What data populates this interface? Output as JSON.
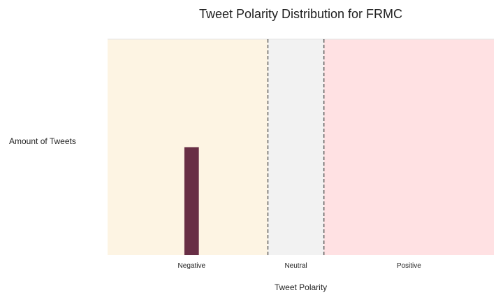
{
  "chart_data": {
    "type": "bar",
    "title": "Tweet Polarity Distribution for FRMC",
    "xlabel": "Tweet Polarity",
    "ylabel": "Amount of Tweets",
    "xlim": [
      -1.0,
      1.0
    ],
    "ylim": [
      0,
      2
    ],
    "grid": false,
    "regions": [
      {
        "label": "Negative",
        "from": -1.0,
        "to": -0.17,
        "color": "#fdf4e3"
      },
      {
        "label": "Neutral",
        "from": -0.17,
        "to": 0.12,
        "color": "#f2f2f2"
      },
      {
        "label": "Positive",
        "from": 0.12,
        "to": 1.0,
        "color": "#ffe1e3"
      }
    ],
    "thresholds": [
      -0.17,
      0.12
    ],
    "tick_labels": [
      {
        "label": "Negative",
        "x": -0.565
      },
      {
        "label": "Neutral",
        "x": -0.025
      },
      {
        "label": "Positive",
        "x": 0.56
      }
    ],
    "bars": [
      {
        "x": -0.565,
        "width": 0.075,
        "value": 1,
        "color": "#682e45"
      }
    ],
    "threshold_color": "#555555"
  }
}
